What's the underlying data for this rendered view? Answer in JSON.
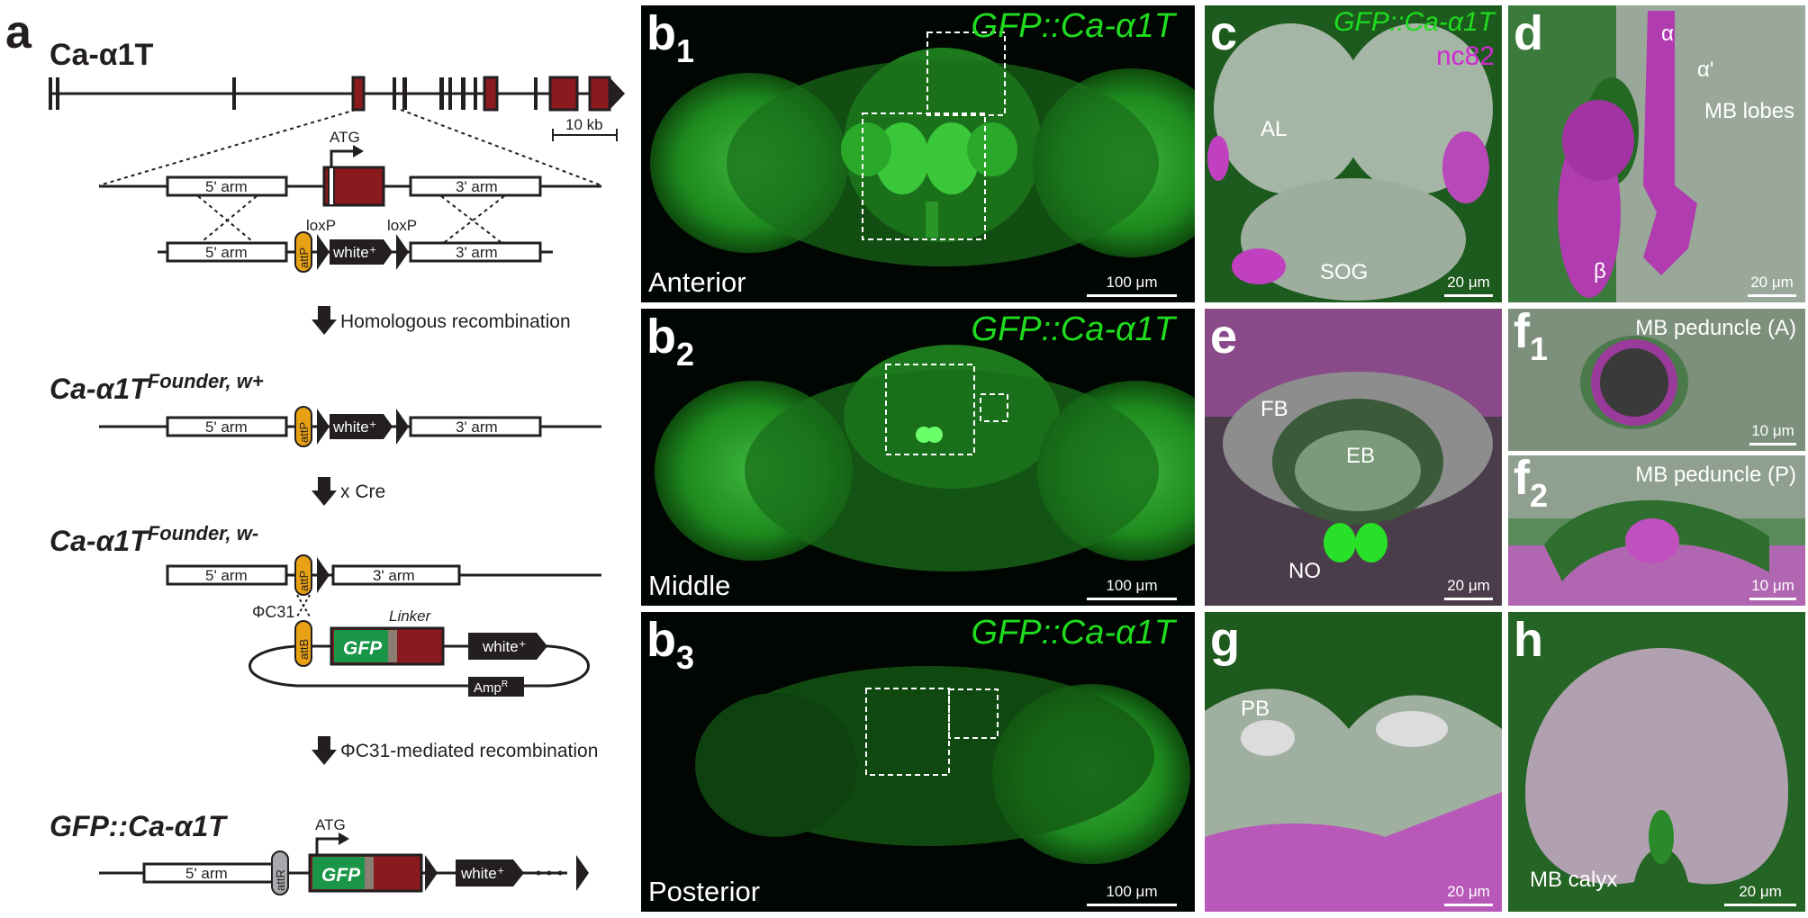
{
  "panel_a": {
    "letter": "a",
    "gene_name": "Ca-α1T",
    "scale_label": "10 kb",
    "atg_label": "ATG",
    "arm5_label": "5' arm",
    "arm3_label": "3' arm",
    "loxp_label": "loxP",
    "attp_label": "attP",
    "attb_label": "attB",
    "attr_label": "attR",
    "white_label": "white⁺",
    "gfp_label": "GFP",
    "linker_label": "Linker",
    "ampr_label": "AmpR",
    "phic31_label": "ΦC31",
    "step1": "Homologous recombination",
    "step2": "x Cre",
    "step3": "ΦC31-mediated recombination",
    "founder_wplus_base": "Ca-α1T",
    "founder_wplus_sup": "Founder, w+",
    "founder_wminus_base": "Ca-α1T",
    "founder_wminus_sup": "Founder, w-",
    "final_name": "GFP::Ca-α1T",
    "colors": {
      "exon": "#8b1a1f",
      "attp": "#e8a114",
      "gfp": "#1a9648",
      "dark": "#231f20"
    }
  },
  "panels": {
    "b1": {
      "letter": "b",
      "sub": "1",
      "title": "GFP::Ca-α1T",
      "position": "Anterior",
      "scale": "100 μm"
    },
    "b2": {
      "letter": "b",
      "sub": "2",
      "title": "GFP::Ca-α1T",
      "position": "Middle",
      "scale": "100 μm"
    },
    "b3": {
      "letter": "b",
      "sub": "3",
      "title": "GFP::Ca-α1T",
      "position": "Posterior",
      "scale": "100 μm"
    },
    "c": {
      "letter": "c",
      "title": "GFP::Ca-α1T",
      "marker": "nc82",
      "al": "AL",
      "sog": "SOG",
      "scale": "20 μm"
    },
    "d": {
      "letter": "d",
      "alpha": "α",
      "alpha_prime": "α'",
      "beta": "β",
      "lobes": "MB lobes",
      "scale": "20 μm"
    },
    "e": {
      "letter": "e",
      "fb": "FB",
      "eb": "EB",
      "no": "NO",
      "scale": "20 μm"
    },
    "f1": {
      "letter": "f",
      "sub": "1",
      "label": "MB peduncle (A)",
      "scale": "10 μm"
    },
    "f2": {
      "letter": "f",
      "sub": "2",
      "label": "MB peduncle (P)",
      "scale": "10 μm"
    },
    "g": {
      "letter": "g",
      "pb": "PB",
      "scale": "20 μm"
    },
    "h": {
      "letter": "h",
      "label": "MB calyx",
      "scale": "20 μm"
    }
  },
  "colors": {
    "gfp_text": "#1fdc1f",
    "magenta": "#d02ad0",
    "green": "#22b422"
  }
}
